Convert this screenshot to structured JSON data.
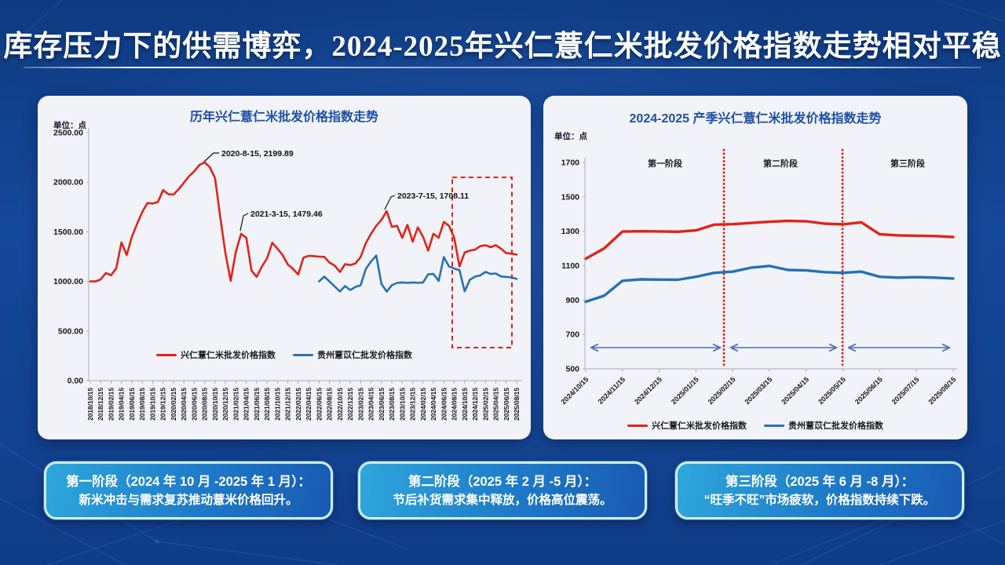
{
  "page": {
    "title": "库存压力下的供需博弈，2024-2025年兴仁薏仁米批发价格指数走势相对平稳"
  },
  "colors": {
    "background": "#11418f",
    "panel": "#f2f3f8",
    "chart_title": "#1d4fa5",
    "red_series": "#df2418",
    "blue_series": "#2472b4",
    "dashed_box": "#de2317",
    "stage_arrow": "#4a6db8",
    "card_border": "#cdeefb"
  },
  "chart_data": [
    {
      "type": "line",
      "title": "历年兴仁薏仁米批发价格指数走势",
      "unit_label": "单位：点",
      "ylim": [
        0,
        2500
      ],
      "grid": false,
      "legend_position": "bottom-inside",
      "y_ticks": [
        "0.00",
        "500.00",
        "1000.00",
        "1500.00",
        "2000.00",
        "2500.00"
      ],
      "x_labels": [
        "2018/10/15",
        "2018/12/15",
        "2019/02/15",
        "2019/04/15",
        "2019/06/15",
        "2019/08/15",
        "2019/10/15",
        "2019/12/15",
        "2020/02/15",
        "2020/04/15",
        "2020/06/15",
        "2020/08/15",
        "2020/10/15",
        "2020/12/15",
        "2021/02/15",
        "2021/04/15",
        "2021/06/15",
        "2021/08/15",
        "2021/10/15",
        "2021/12/15",
        "2022/02/15",
        "2022/04/15",
        "2022/06/15",
        "2022/08/15",
        "2022/10/15",
        "2022/12/15",
        "2023/02/15",
        "2023/04/15",
        "2023/06/15",
        "2023/08/15",
        "2023/10/15",
        "2023/12/15",
        "2024/02/15",
        "2024/04/15",
        "2024/06/15",
        "2024/08/15",
        "2024/10/15",
        "2024/12/15",
        "2025/02/15",
        "2025/04/15",
        "2025/06/15",
        "2025/08/15"
      ],
      "series": [
        {
          "name": "兴仁薏仁米批发价格指数",
          "color": "#df2418",
          "start_index": 0,
          "values": [
            1000,
            1000,
            1020,
            1085,
            1062,
            1133,
            1393,
            1266,
            1450,
            1580,
            1700,
            1790,
            1785,
            1800,
            1920,
            1880,
            1875,
            1930,
            1995,
            2060,
            2110,
            2175,
            2199.89,
            2150,
            2040,
            1650,
            1280,
            1005,
            1300,
            1479.46,
            1440,
            1110,
            1045,
            1150,
            1230,
            1390,
            1330,
            1265,
            1170,
            1125,
            1070,
            1240,
            1258,
            1255,
            1250,
            1248,
            1190,
            1160,
            1095,
            1174,
            1165,
            1180,
            1245,
            1387,
            1480,
            1560,
            1620,
            1708.11,
            1550,
            1560,
            1440,
            1570,
            1400,
            1545,
            1450,
            1310,
            1480,
            1440,
            1600,
            1560,
            1440,
            1150,
            1290,
            1310,
            1320,
            1355,
            1365,
            1345,
            1365,
            1330,
            1285,
            1280,
            1270
          ]
        },
        {
          "name": "贵州薏苡仁批发价格指数",
          "color": "#2472b4",
          "start_index": 44,
          "values": [
            1000,
            1048,
            1000,
            950,
            898,
            953,
            913,
            945,
            961,
            1127,
            1200,
            1261,
            975,
            898,
            961,
            985,
            990,
            985,
            990,
            985,
            990,
            1072,
            1075,
            1005,
            1245,
            1150,
            1130,
            1115,
            900,
            1017,
            1048,
            1060,
            1096,
            1075,
            1080,
            1050,
            1045,
            1040,
            1025
          ]
        }
      ],
      "annotations": [
        {
          "label": "2020-8-15, 2199.89"
        },
        {
          "label": "2021-3-15, 1479.46"
        },
        {
          "label": "2023-7-15, 1708.11"
        }
      ],
      "highlight_box_note": "red dashed rectangle over 2024/10-2025/08 period"
    },
    {
      "type": "line",
      "title": "2024-2025 产季兴仁薏仁米批发价格指数走势",
      "unit_label": "单位：点",
      "ylim": [
        500,
        1700
      ],
      "grid": false,
      "legend_position": "bottom",
      "y_ticks": [
        "500",
        "700",
        "900",
        "1100",
        "1300",
        "1500",
        "1700"
      ],
      "x_labels": [
        "2024/10/15",
        "2024/11/15",
        "2024/12/15",
        "2025/01/15",
        "2025/02/15",
        "2025/03/15",
        "2025/04/15",
        "2025/05/15",
        "2025/06/15",
        "2025/07/15",
        "2025/08/15"
      ],
      "stages": [
        "第一阶段",
        "第二阶段",
        "第三阶段"
      ],
      "series": [
        {
          "name": "兴仁薏仁米批发价格指数",
          "color": "#df2418",
          "start_index": 0,
          "values": [
            1140,
            1200,
            1298,
            1300,
            1299,
            1297,
            1305,
            1338,
            1341,
            1348,
            1355,
            1360,
            1358,
            1344,
            1340,
            1352,
            1282,
            1276,
            1274,
            1272,
            1266
          ]
        },
        {
          "name": "贵州薏苡仁批发价格指数",
          "color": "#2472b4",
          "start_index": 0,
          "values": [
            890,
            925,
            1012,
            1020,
            1019,
            1018,
            1035,
            1058,
            1065,
            1088,
            1098,
            1075,
            1072,
            1062,
            1058,
            1065,
            1035,
            1030,
            1033,
            1030,
            1025
          ]
        }
      ]
    }
  ],
  "cards": [
    {
      "title": "第一阶段（2024 年 10 月 -2025 年 1 月）：",
      "body": "新米冲击与需求复苏推动薏米价格回升。"
    },
    {
      "title": "第二阶段（2025 年 2 月 -5 月）：",
      "body": "节后补货需求集中释放，价格高位震荡。"
    },
    {
      "title": "第三阶段（2025 年 6 月 -8 月）：",
      "body": "“旺季不旺”市场疲软，价格指数持续下跌。"
    }
  ]
}
